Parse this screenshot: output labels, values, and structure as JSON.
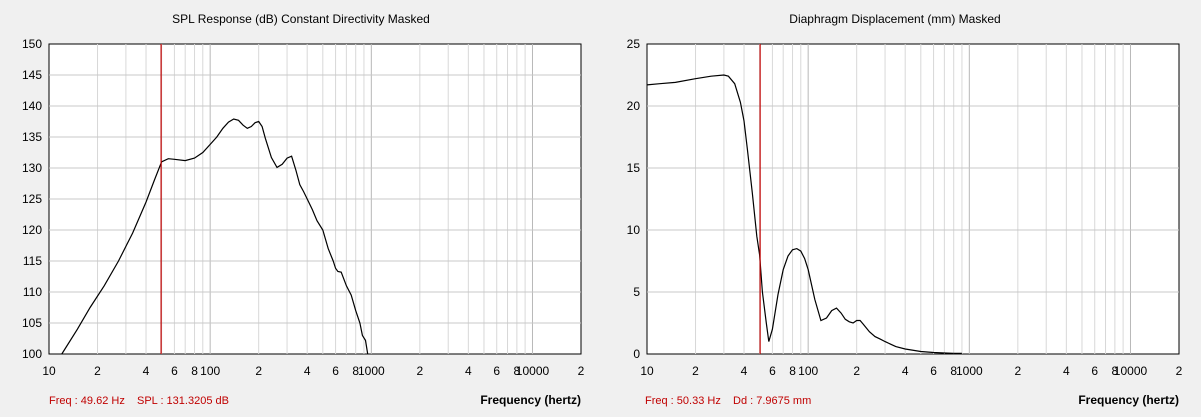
{
  "chart_data": [
    {
      "type": "line",
      "title": "SPL Response (dB)    Constant Directivity    Masked",
      "xlabel": "Frequency (hertz)",
      "ylabel": "",
      "x_scale": "log",
      "xlim": [
        10,
        20000
      ],
      "ylim": [
        100,
        150
      ],
      "grid": true,
      "ytick_labels": [
        "100",
        "105",
        "110",
        "115",
        "120",
        "125",
        "130",
        "135",
        "140",
        "145",
        "150"
      ],
      "xtick_labels": [
        {
          "x": 10,
          "label": "10"
        },
        {
          "x": 20,
          "label": "2"
        },
        {
          "x": 40,
          "label": "4"
        },
        {
          "x": 60,
          "label": "6"
        },
        {
          "x": 80,
          "label": "8"
        },
        {
          "x": 100,
          "label": "100"
        },
        {
          "x": 200,
          "label": "2"
        },
        {
          "x": 400,
          "label": "4"
        },
        {
          "x": 600,
          "label": "6"
        },
        {
          "x": 800,
          "label": "8"
        },
        {
          "x": 1000,
          "label": "1000"
        },
        {
          "x": 2000,
          "label": "2"
        },
        {
          "x": 4000,
          "label": "4"
        },
        {
          "x": 6000,
          "label": "6"
        },
        {
          "x": 8000,
          "label": "8"
        },
        {
          "x": 10000,
          "label": "10000"
        },
        {
          "x": 20000,
          "label": "2"
        }
      ],
      "cursor_x": 49.62,
      "readout": {
        "freq": "Freq : 49.62 Hz",
        "value": "SPL : 131.3205 dB"
      },
      "series": [
        {
          "x": [
            12,
            15,
            18,
            22,
            27,
            33,
            40,
            45,
            50,
            55,
            60,
            70,
            80,
            90,
            100,
            110,
            120,
            130,
            140,
            150,
            160,
            170,
            180,
            190,
            200,
            210,
            220,
            240,
            260,
            280,
            300,
            320,
            340,
            360,
            380,
            400,
            430,
            460,
            500,
            540,
            580,
            600,
            620,
            650,
            700,
            750,
            800,
            850,
            880,
            920,
            950
          ],
          "y": [
            100,
            104,
            107.5,
            111,
            115,
            119.5,
            124.5,
            128,
            131,
            131.5,
            131.4,
            131.2,
            131.6,
            132.5,
            133.8,
            135,
            136.4,
            137.4,
            137.9,
            137.7,
            136.9,
            136.4,
            136.7,
            137.3,
            137.5,
            136.7,
            134.8,
            131.7,
            130.1,
            130.6,
            131.6,
            131.9,
            129.7,
            127.3,
            126.2,
            125,
            123.3,
            121.5,
            120,
            117,
            115,
            113.8,
            113.3,
            113.2,
            111,
            109.5,
            107,
            105,
            103,
            102.2,
            100
          ]
        }
      ]
    },
    {
      "type": "line",
      "title": "Diaphragm Displacement (mm)    Masked",
      "xlabel": "Frequency (hertz)",
      "ylabel": "",
      "x_scale": "log",
      "xlim": [
        10,
        20000
      ],
      "ylim": [
        0,
        25
      ],
      "grid": true,
      "ytick_labels": [
        "0",
        "5",
        "10",
        "15",
        "20",
        "25"
      ],
      "xtick_labels": [
        {
          "x": 10,
          "label": "10"
        },
        {
          "x": 20,
          "label": "2"
        },
        {
          "x": 40,
          "label": "4"
        },
        {
          "x": 60,
          "label": "6"
        },
        {
          "x": 80,
          "label": "8"
        },
        {
          "x": 100,
          "label": "100"
        },
        {
          "x": 200,
          "label": "2"
        },
        {
          "x": 400,
          "label": "4"
        },
        {
          "x": 600,
          "label": "6"
        },
        {
          "x": 800,
          "label": "8"
        },
        {
          "x": 1000,
          "label": "1000"
        },
        {
          "x": 2000,
          "label": "2"
        },
        {
          "x": 4000,
          "label": "4"
        },
        {
          "x": 6000,
          "label": "6"
        },
        {
          "x": 8000,
          "label": "8"
        },
        {
          "x": 10000,
          "label": "10000"
        },
        {
          "x": 20000,
          "label": "2"
        }
      ],
      "cursor_x": 50.33,
      "readout": {
        "freq": "Freq : 50.33 Hz",
        "value": "Dd : 7.9675 mm"
      },
      "series": [
        {
          "x": [
            10,
            12,
            15,
            20,
            25,
            30,
            32,
            35,
            38,
            40,
            42,
            45,
            48,
            50,
            52,
            55,
            57,
            60,
            65,
            70,
            75,
            80,
            85,
            90,
            95,
            100,
            110,
            120,
            130,
            140,
            150,
            160,
            170,
            180,
            190,
            200,
            210,
            220,
            240,
            260,
            280,
            300,
            350,
            400,
            500,
            600,
            700,
            800,
            900
          ],
          "y": [
            21.7,
            21.8,
            21.9,
            22.2,
            22.4,
            22.5,
            22.4,
            21.8,
            20.3,
            18.8,
            16.5,
            13,
            9.5,
            8,
            5,
            2.5,
            1,
            2,
            4.8,
            6.8,
            7.9,
            8.4,
            8.5,
            8.3,
            7.7,
            6.8,
            4.4,
            2.7,
            2.9,
            3.5,
            3.7,
            3.3,
            2.8,
            2.6,
            2.5,
            2.7,
            2.7,
            2.4,
            1.8,
            1.4,
            1.2,
            1,
            0.6,
            0.4,
            0.2,
            0.12,
            0.08,
            0.06,
            0.05
          ]
        }
      ]
    }
  ]
}
